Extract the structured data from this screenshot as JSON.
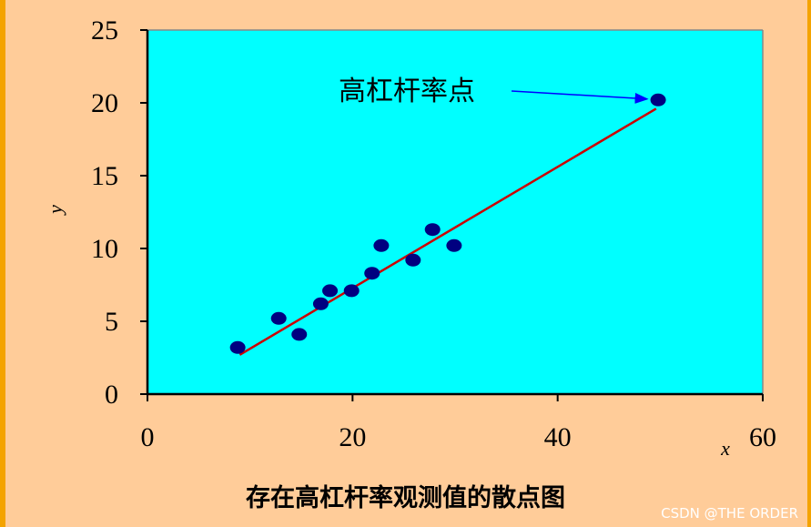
{
  "chart_data": {
    "type": "scatter",
    "title": "",
    "xlabel": "x",
    "ylabel": "y",
    "xlim": [
      0,
      60
    ],
    "ylim": [
      0,
      25
    ],
    "xticks": [
      0,
      20,
      40,
      60
    ],
    "yticks": [
      0,
      5,
      10,
      15,
      20,
      25
    ],
    "grid": false,
    "points": [
      {
        "x": 8.8,
        "y": 3.2
      },
      {
        "x": 12.8,
        "y": 5.2
      },
      {
        "x": 14.8,
        "y": 4.1
      },
      {
        "x": 16.9,
        "y": 6.2
      },
      {
        "x": 17.8,
        "y": 7.1
      },
      {
        "x": 19.9,
        "y": 7.1
      },
      {
        "x": 21.9,
        "y": 8.3
      },
      {
        "x": 22.8,
        "y": 10.2
      },
      {
        "x": 25.9,
        "y": 9.2
      },
      {
        "x": 27.8,
        "y": 11.3
      },
      {
        "x": 29.9,
        "y": 10.2
      },
      {
        "x": 49.8,
        "y": 20.2
      }
    ],
    "fit_line": {
      "x1": 9.0,
      "y1": 2.7,
      "x2": 49.6,
      "y2": 19.6
    },
    "annotation": {
      "text": "高杠杆率点",
      "target": {
        "x": 49.8,
        "y": 20.2
      }
    },
    "colors": {
      "plot_bg": "#00ffff",
      "point": "#000080",
      "line": "#cc0000",
      "arrow": "#0000ff",
      "page_bg": "#ffcc99"
    }
  },
  "caption": "存在高杠杆率观测值的散点图",
  "watermark": "CSDN @THE ORDER"
}
